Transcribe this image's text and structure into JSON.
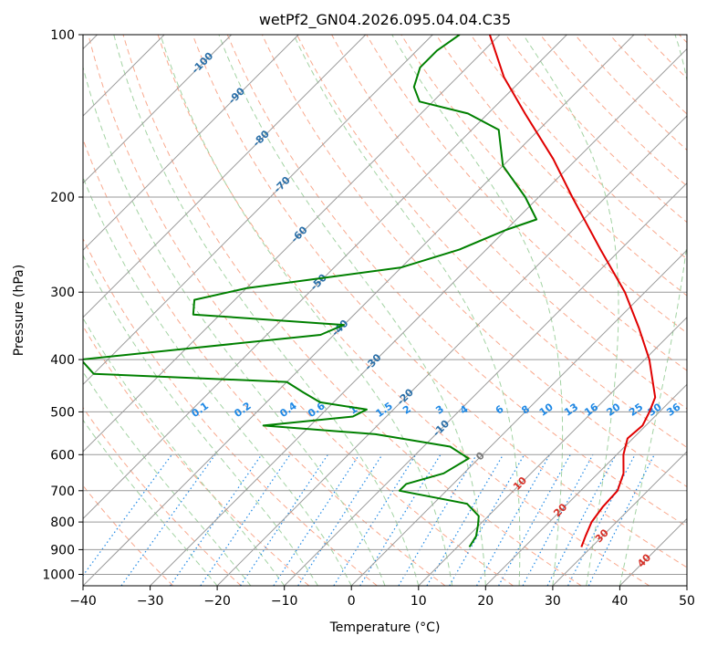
{
  "chart_data": {
    "type": "line",
    "title": "wetPf2_GN04.2026.095.04.04.C35",
    "xlabel": "Temperature (°C)",
    "ylabel": "Pressure (hPa)",
    "xlim": [
      -40,
      50
    ],
    "ylim": [
      1050,
      100
    ],
    "skew_degrees": 45,
    "x_ticks": [
      -40,
      -30,
      -20,
      -10,
      0,
      10,
      20,
      30,
      40,
      50
    ],
    "x_tick_labels": [
      "−40",
      "−30",
      "−20",
      "−10",
      "0",
      "10",
      "20",
      "30",
      "40",
      "50"
    ],
    "y_ticks": [
      1000,
      900,
      800,
      700,
      600,
      500,
      400,
      300,
      200,
      100
    ],
    "y_tick_labels": [
      "1000",
      "900",
      "800",
      "700",
      "600",
      "500",
      "400",
      "300",
      "200",
      "100"
    ],
    "colors": {
      "temperature": "#e00000",
      "dewpoint": "#008000",
      "isotherm": "#9a9a9a",
      "dry_adiabat": "#f9a98e",
      "moist_adiabat": "#a3d3a3",
      "mixing_ratio": "#1e88e5",
      "isotherm_label": "#2a6fa8",
      "warm_label": "#d73027",
      "zero_label": "#7a7a7a"
    },
    "isotherm_labels": [
      {
        "text": "-100",
        "t": -100,
        "p": 113
      },
      {
        "text": "-90",
        "t": -90,
        "p": 130
      },
      {
        "text": "-80",
        "t": -80,
        "p": 156
      },
      {
        "text": "-70",
        "t": -70,
        "p": 190
      },
      {
        "text": "-60",
        "t": -60,
        "p": 235
      },
      {
        "text": "-50",
        "t": -50,
        "p": 288
      },
      {
        "text": "-40",
        "t": -40,
        "p": 350
      },
      {
        "text": "-30",
        "t": -30,
        "p": 405
      },
      {
        "text": "-20",
        "t": -20,
        "p": 470
      },
      {
        "text": "-10",
        "t": -10,
        "p": 537
      },
      {
        "text": "0",
        "t": 0,
        "p": 605
      },
      {
        "text": "10",
        "t": 10,
        "p": 680
      },
      {
        "text": "20",
        "t": 20,
        "p": 762
      },
      {
        "text": "30",
        "t": 30,
        "p": 850
      },
      {
        "text": "40",
        "t": 40,
        "p": 945
      }
    ],
    "mixing_ratio_labels": [
      "0.1",
      "0.2",
      "0.4",
      "0.6",
      "1",
      "1.5",
      "2",
      "3",
      "4",
      "6",
      "8",
      "10",
      "13",
      "16",
      "20",
      "25",
      "30",
      "36"
    ],
    "series": [
      {
        "name": "Temperature",
        "points": [
          {
            "p": 890,
            "t": 28.5
          },
          {
            "p": 850,
            "t": 27.5
          },
          {
            "p": 800,
            "t": 26.3
          },
          {
            "p": 750,
            "t": 25.7
          },
          {
            "p": 700,
            "t": 25.5
          },
          {
            "p": 650,
            "t": 23.8
          },
          {
            "p": 600,
            "t": 21.0
          },
          {
            "p": 560,
            "t": 19.2
          },
          {
            "p": 530,
            "t": 19.5
          },
          {
            "p": 500,
            "t": 18.5
          },
          {
            "p": 470,
            "t": 17.2
          },
          {
            "p": 400,
            "t": 10.7
          },
          {
            "p": 350,
            "t": 4.5
          },
          {
            "p": 300,
            "t": -3.0
          },
          {
            "p": 250,
            "t": -13.0
          },
          {
            "p": 200,
            "t": -25.0
          },
          {
            "p": 170,
            "t": -33.5
          },
          {
            "p": 140,
            "t": -44.5
          },
          {
            "p": 120,
            "t": -53.0
          },
          {
            "p": 100,
            "t": -61.5
          }
        ]
      },
      {
        "name": "Dewpoint",
        "points": [
          {
            "p": 890,
            "t": 11.8
          },
          {
            "p": 850,
            "t": 11.2
          },
          {
            "p": 810,
            "t": 9.8
          },
          {
            "p": 780,
            "t": 8.6
          },
          {
            "p": 740,
            "t": 5.0
          },
          {
            "p": 700,
            "t": -7.0
          },
          {
            "p": 680,
            "t": -7.0
          },
          {
            "p": 650,
            "t": -3.0
          },
          {
            "p": 610,
            "t": -1.5
          },
          {
            "p": 580,
            "t": -6.0
          },
          {
            "p": 550,
            "t": -19.0
          },
          {
            "p": 530,
            "t": -37.0
          },
          {
            "p": 510,
            "t": -25.0
          },
          {
            "p": 495,
            "t": -24.0
          },
          {
            "p": 480,
            "t": -32.0
          },
          {
            "p": 460,
            "t": -36.0
          },
          {
            "p": 440,
            "t": -40.0
          },
          {
            "p": 425,
            "t": -70.0
          },
          {
            "p": 400,
            "t": -74.0
          },
          {
            "p": 360,
            "t": -42.0
          },
          {
            "p": 345,
            "t": -40.0
          },
          {
            "p": 330,
            "t": -64.0
          },
          {
            "p": 310,
            "t": -66.0
          },
          {
            "p": 295,
            "t": -60.0
          },
          {
            "p": 270,
            "t": -40.0
          },
          {
            "p": 250,
            "t": -34.0
          },
          {
            "p": 230,
            "t": -30.0
          },
          {
            "p": 220,
            "t": -27.0
          },
          {
            "p": 200,
            "t": -32.0
          },
          {
            "p": 175,
            "t": -40.0
          },
          {
            "p": 150,
            "t": -46.0
          },
          {
            "p": 140,
            "t": -53.0
          },
          {
            "p": 133,
            "t": -62.0
          },
          {
            "p": 125,
            "t": -65.0
          },
          {
            "p": 115,
            "t": -67.0
          },
          {
            "p": 107,
            "t": -67.0
          },
          {
            "p": 100,
            "t": -66.0
          }
        ]
      }
    ]
  }
}
